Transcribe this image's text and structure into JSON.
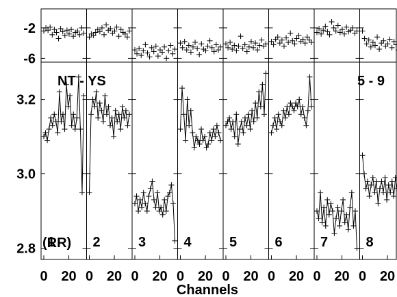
{
  "chart_data": {
    "type": "line",
    "title": "",
    "xlabel": "Channels",
    "ylabel": "",
    "corner_labels": {
      "left": "NT - YS",
      "right": "5 - 9",
      "pol": "(RR)"
    },
    "panel_labels": [
      "1",
      "2",
      "3",
      "4",
      "5",
      "6",
      "7",
      "8"
    ],
    "x_ticks": [
      "0",
      "20"
    ],
    "xlim": [
      0,
      32
    ],
    "top_yticks": [
      "-2",
      "-6"
    ],
    "top_ylim": [
      -6.5,
      0.5
    ],
    "main_yticks": [
      "3.2",
      "3.0",
      "2.8"
    ],
    "main_ylim": [
      2.77,
      3.3
    ],
    "series": [
      {
        "panel": "1",
        "top": [
          -2.4,
          -2.0,
          -2.3,
          -1.9,
          -2.9,
          -2.2,
          -2.6,
          -3.4,
          -2.1,
          -2.5,
          -3.0,
          -2.3,
          -2.8,
          -2.2,
          -3.1,
          -2.6,
          -2.4,
          -2.9,
          -2.0,
          -2.7
        ],
        "main": [
          3.1,
          3.11,
          3.09,
          3.12,
          3.15,
          3.13,
          3.16,
          3.14,
          3.11,
          3.22,
          3.14,
          3.16,
          3.12,
          3.24,
          3.18,
          3.21,
          3.13,
          3.16,
          3.12,
          3.15,
          3.26,
          3.12,
          2.95,
          3.21
        ]
      },
      {
        "panel": "2",
        "top": [
          -3.2,
          -2.8,
          -3.0,
          -2.6,
          -2.2,
          -2.5,
          -2.0,
          -2.9,
          -1.6,
          -2.3,
          -2.1,
          -2.7,
          -2.4,
          -1.9,
          -3.1,
          -2.2,
          -2.6,
          -2.8,
          -3.2,
          -2.4
        ],
        "main": [
          2.95,
          3.16,
          3.2,
          3.18,
          3.22,
          3.15,
          3.19,
          3.17,
          3.14,
          3.21,
          3.16,
          3.18,
          3.13,
          3.15,
          3.1,
          3.17,
          3.14,
          3.16,
          3.12,
          3.18,
          3.15,
          3.17,
          3.13,
          3.16
        ]
      },
      {
        "panel": "3",
        "top": [
          -4.9,
          -5.4,
          -4.7,
          -5.6,
          -5.0,
          -4.2,
          -5.3,
          -5.8,
          -4.6,
          -5.1,
          -4.4,
          -5.7,
          -4.9,
          -5.2,
          -4.5,
          -6.0,
          -5.0,
          -4.3,
          -5.4,
          -4.8
        ],
        "main": [
          2.92,
          2.94,
          2.9,
          2.93,
          2.91,
          2.95,
          2.92,
          2.9,
          2.94,
          2.96,
          2.98,
          2.93,
          2.91,
          2.95,
          2.9,
          2.91,
          2.89,
          2.93,
          2.9,
          2.94,
          2.95,
          2.97,
          2.92,
          2.82
        ]
      },
      {
        "panel": "4",
        "top": [
          -4.0,
          -4.6,
          -3.8,
          -4.9,
          -4.3,
          -5.2,
          -4.5,
          -3.9,
          -4.7,
          -5.5,
          -4.1,
          -4.8,
          -5.0,
          -4.4,
          -3.7,
          -4.6,
          -5.1,
          -4.2,
          -4.9,
          -4.5
        ],
        "main": [
          3.12,
          3.23,
          3.16,
          3.09,
          3.2,
          3.13,
          3.17,
          3.11,
          3.07,
          3.1,
          3.09,
          3.08,
          3.12,
          3.09,
          3.1,
          3.07,
          3.08,
          3.11,
          3.09,
          3.12,
          3.1,
          3.13,
          3.11,
          3.09
        ]
      },
      {
        "panel": "5",
        "top": [
          -4.1,
          -4.6,
          -3.9,
          -4.8,
          -4.3,
          -5.0,
          -4.4,
          -3.1,
          -4.7,
          -4.2,
          -5.1,
          -4.5,
          -3.8,
          -4.6,
          -4.0,
          -4.9,
          -4.3,
          -3.6,
          -4.4,
          -4.1
        ],
        "main": [
          3.13,
          3.14,
          3.15,
          3.12,
          3.14,
          3.1,
          3.16,
          3.08,
          3.12,
          3.14,
          3.11,
          3.15,
          3.13,
          3.16,
          3.12,
          3.17,
          3.14,
          3.19,
          3.15,
          3.22,
          3.18,
          3.24,
          3.16,
          3.27
        ]
      },
      {
        "panel": "6",
        "top": [
          -3.8,
          -4.2,
          -3.5,
          -3.2,
          -4.0,
          -3.6,
          -4.4,
          -3.3,
          -3.9,
          -2.7,
          -3.7,
          -4.1,
          -3.4,
          -3.0,
          -3.8,
          -3.5,
          -4.0,
          -3.2,
          -3.6,
          -3.9
        ],
        "main": [
          3.11,
          3.13,
          3.15,
          3.12,
          3.16,
          3.14,
          3.13,
          3.17,
          3.15,
          3.18,
          3.16,
          3.19,
          3.18,
          3.17,
          3.19,
          3.18,
          3.2,
          3.16,
          3.18,
          3.15,
          3.13,
          3.17,
          3.26,
          3.18
        ]
      },
      {
        "panel": "7",
        "top": [
          -2.6,
          -2.1,
          -2.8,
          -2.3,
          -1.8,
          -2.5,
          -2.9,
          -1.2,
          -2.0,
          -2.4,
          -1.7,
          -2.6,
          -2.2,
          -2.8,
          -1.9,
          -2.5,
          -2.3,
          -2.0,
          -2.7,
          -2.4
        ],
        "main": [
          2.9,
          2.88,
          2.95,
          2.87,
          2.91,
          2.86,
          2.93,
          2.89,
          2.92,
          2.9,
          2.84,
          2.88,
          2.91,
          2.86,
          2.9,
          2.93,
          2.87,
          2.89,
          2.85,
          2.91,
          2.95,
          2.86,
          2.9,
          2.8
        ]
      },
      {
        "panel": "8",
        "top": [
          -2.4,
          -3.4,
          -4.1,
          -3.6,
          -4.5,
          -3.9,
          -4.3,
          -3.2,
          -4.8,
          -4.0,
          -3.7,
          -4.4,
          -4.1,
          -3.5,
          -4.6,
          -3.8,
          -4.2,
          -4.9,
          -4.0,
          -4.5
        ],
        "main": [
          3.05,
          3.0,
          2.96,
          2.98,
          2.94,
          2.97,
          2.99,
          2.95,
          2.98,
          2.92,
          2.96,
          2.98,
          2.95,
          2.99,
          2.93,
          2.97,
          2.95,
          2.98,
          2.94,
          2.99,
          2.96,
          2.99,
          3.0,
          2.98
        ]
      }
    ]
  }
}
